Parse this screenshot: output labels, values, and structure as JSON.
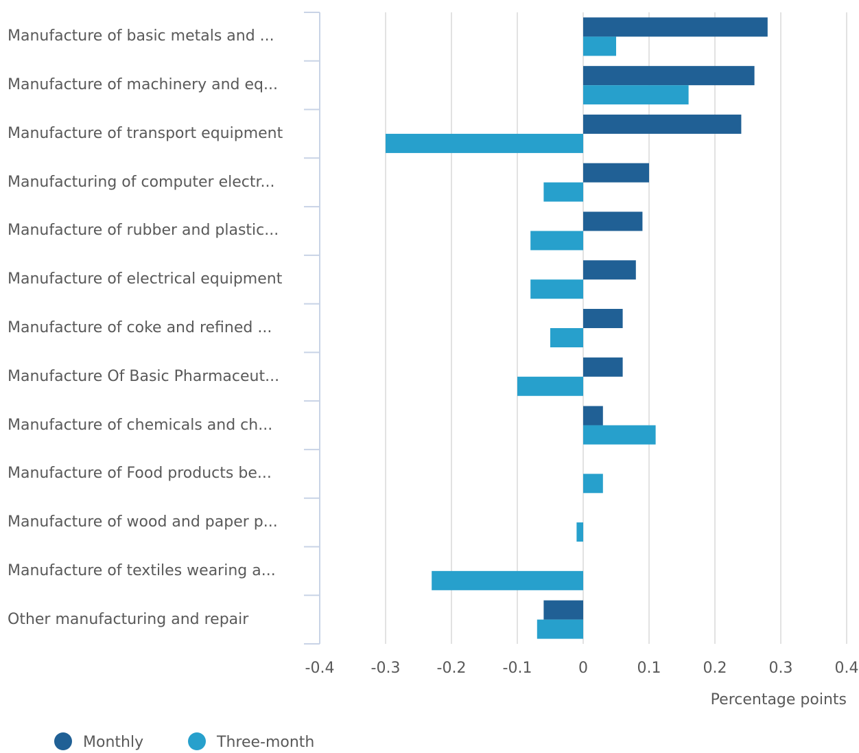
{
  "chart_data": {
    "type": "hbar",
    "categories": [
      "Manufacture of basic metals and ...",
      "Manufacture of machinery and eq...",
      "Manufacture of transport equipment",
      "Manufacturing of computer electr...",
      "Manufacture of rubber and plastic...",
      "Manufacture of electrical equipment",
      "Manufacture of coke and refined ...",
      "Manufacture Of Basic Pharmaceut...",
      "Manufacture of chemicals and ch...",
      "Manufacture of Food products be...",
      "Manufacture of wood and paper p...",
      "Manufacture of textiles wearing a...",
      "Other manufacturing and repair"
    ],
    "series": [
      {
        "name": "Monthly",
        "color": "#206095",
        "values": [
          0.28,
          0.26,
          0.24,
          0.1,
          0.09,
          0.08,
          0.06,
          0.06,
          0.03,
          0,
          0,
          0,
          -0.06
        ]
      },
      {
        "name": "Three-month",
        "color": "#27a0cc",
        "values": [
          0.05,
          0.16,
          -0.3,
          -0.06,
          -0.08,
          -0.08,
          -0.05,
          -0.1,
          0.11,
          0.03,
          -0.01,
          -0.23,
          -0.07
        ]
      }
    ],
    "xlim": [
      -0.4,
      0.4
    ],
    "xticks": [
      -0.4,
      -0.3,
      -0.2,
      -0.1,
      0,
      0.1,
      0.2,
      0.3,
      0.4
    ],
    "xlabel": "Percentage points",
    "grid": true,
    "legend": "bottom-left"
  }
}
